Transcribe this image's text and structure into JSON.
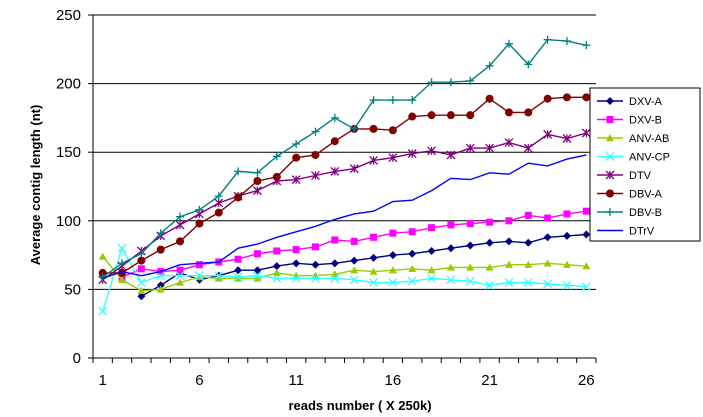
{
  "chart_data": {
    "type": "line",
    "title": "",
    "xlabel": "reads number ( X 250k)",
    "ylabel": "Average contig length (nt)",
    "xlim": [
      1,
      26
    ],
    "ylim": [
      0,
      250
    ],
    "x_ticks": [
      "1",
      "6",
      "11",
      "16",
      "21",
      "26"
    ],
    "y_ticks": [
      "0",
      "50",
      "100",
      "150",
      "200",
      "250"
    ],
    "grid": "horizontal",
    "legend_position": "right",
    "x": [
      1,
      2,
      3,
      4,
      5,
      6,
      7,
      8,
      9,
      10,
      11,
      12,
      13,
      14,
      15,
      16,
      17,
      18,
      19,
      20,
      21,
      22,
      23,
      24,
      25,
      26
    ],
    "series": [
      {
        "name": "DXV-A",
        "color": "#000080",
        "marker": "diamond",
        "values": [
          null,
          null,
          45,
          53,
          62,
          57,
          60,
          64,
          64,
          67,
          69,
          68,
          69,
          71,
          73,
          75,
          76,
          78,
          80,
          82,
          84,
          85,
          84,
          88,
          89,
          90
        ]
      },
      {
        "name": "DXV-B",
        "color": "#ff00ff",
        "marker": "square",
        "values": [
          null,
          59,
          65,
          63,
          64,
          68,
          70,
          72,
          76,
          78,
          79,
          81,
          86,
          85,
          88,
          91,
          92,
          95,
          97,
          98,
          99,
          100,
          104,
          102,
          105,
          107
        ]
      },
      {
        "name": "ANV-AB",
        "color": "#99cc00",
        "marker": "triangle",
        "values": [
          74,
          57,
          49,
          50,
          55,
          59,
          58,
          58,
          58,
          62,
          60,
          60,
          61,
          64,
          63,
          64,
          65,
          64,
          66,
          66,
          66,
          68,
          68,
          69,
          68,
          67
        ]
      },
      {
        "name": "ANV-CP",
        "color": "#33ffff",
        "marker": "x",
        "values": [
          34,
          80,
          55,
          60,
          60,
          60,
          60,
          59,
          60,
          58,
          58,
          58,
          58,
          57,
          55,
          55,
          56,
          58,
          57,
          56,
          53,
          55,
          55,
          54,
          53,
          52
        ]
      },
      {
        "name": "DTV",
        "color": "#800080",
        "marker": "star",
        "values": [
          57,
          67,
          78,
          89,
          97,
          105,
          113,
          118,
          122,
          129,
          130,
          133,
          136,
          138,
          144,
          146,
          149,
          151,
          148,
          153,
          153,
          157,
          153,
          163,
          160,
          164
        ]
      },
      {
        "name": "DBV-A",
        "color": "#800000",
        "marker": "circle",
        "values": [
          62,
          62,
          71,
          79,
          85,
          98,
          106,
          117,
          129,
          132,
          146,
          148,
          158,
          167,
          167,
          166,
          176,
          177,
          177,
          177,
          189,
          179,
          179,
          189,
          190,
          190
        ]
      },
      {
        "name": "DBV-B",
        "color": "#008080",
        "marker": "plus",
        "values": [
          59,
          69,
          76,
          91,
          103,
          108,
          118,
          136,
          135,
          147,
          156,
          165,
          175,
          167,
          188,
          188,
          188,
          201,
          201,
          202,
          213,
          229,
          214,
          232,
          231,
          228
        ]
      },
      {
        "name": "DTrV",
        "color": "#0000ff",
        "marker": "none",
        "values": [
          58,
          63,
          60,
          63,
          68,
          69,
          70,
          80,
          83,
          88,
          92,
          96,
          101,
          105,
          107,
          114,
          115,
          122,
          131,
          130,
          135,
          134,
          142,
          140,
          145,
          148
        ]
      }
    ]
  }
}
